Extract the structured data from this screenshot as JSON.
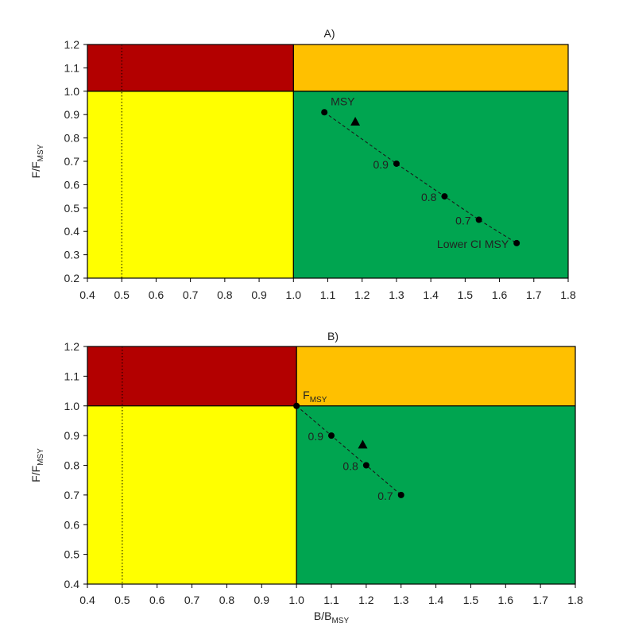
{
  "chart_data": [
    {
      "type": "scatter",
      "title": "A)",
      "xlabel": "",
      "ylabel": {
        "base": "F/F",
        "sub": "MSY"
      },
      "xlim": [
        0.4,
        1.8
      ],
      "ylim": [
        0.2,
        1.2
      ],
      "xticks": [
        "0.4",
        "0.5",
        "0.6",
        "0.7",
        "0.8",
        "0.9",
        "1.0",
        "1.1",
        "1.2",
        "1.3",
        "1.4",
        "1.5",
        "1.6",
        "1.7",
        "1.8"
      ],
      "yticks": [
        "0.2",
        "0.3",
        "0.4",
        "0.5",
        "0.6",
        "0.7",
        "0.8",
        "0.9",
        "1.0",
        "1.1",
        "1.2"
      ],
      "grid": false,
      "reference_line_x": 0.5,
      "zones": [
        {
          "x": [
            0.4,
            1.0
          ],
          "y": [
            1.0,
            1.2
          ],
          "color": "#b30000"
        },
        {
          "x": [
            1.0,
            1.8
          ],
          "y": [
            1.0,
            1.2
          ],
          "color": "#ffc000"
        },
        {
          "x": [
            0.4,
            1.0
          ],
          "y": [
            0.2,
            1.0
          ],
          "color": "#ffff00"
        },
        {
          "x": [
            1.0,
            1.8
          ],
          "y": [
            0.2,
            1.0
          ],
          "color": "#00a550"
        }
      ],
      "points": [
        {
          "x": 1.09,
          "y": 0.91,
          "label": "MSY",
          "label_side": "above-right"
        },
        {
          "x": 1.3,
          "y": 0.69,
          "label": "0.9",
          "label_side": "left"
        },
        {
          "x": 1.44,
          "y": 0.55,
          "label": "0.8",
          "label_side": "left"
        },
        {
          "x": 1.54,
          "y": 0.45,
          "label": "0.7",
          "label_side": "left"
        },
        {
          "x": 1.65,
          "y": 0.35,
          "label": "Lower CI MSY",
          "label_side": "left"
        }
      ],
      "marker": {
        "x": 1.18,
        "y": 0.87,
        "shape": "triangle"
      }
    },
    {
      "type": "scatter",
      "title": "B)",
      "xlabel": {
        "base": "B/B",
        "sub": "MSY"
      },
      "ylabel": {
        "base": "F/F",
        "sub": "MSY"
      },
      "xlim": [
        0.4,
        1.8
      ],
      "ylim": [
        0.4,
        1.2
      ],
      "xticks": [
        "0.4",
        "0.5",
        "0.6",
        "0.7",
        "0.8",
        "0.9",
        "1.0",
        "1.1",
        "1.2",
        "1.3",
        "1.4",
        "1.5",
        "1.6",
        "1.7",
        "1.8"
      ],
      "yticks": [
        "0.4",
        "0.5",
        "0.6",
        "0.7",
        "0.8",
        "0.9",
        "1.0",
        "1.1",
        "1.2"
      ],
      "grid": false,
      "reference_line_x": 0.5,
      "zones": [
        {
          "x": [
            0.4,
            1.0
          ],
          "y": [
            1.0,
            1.2
          ],
          "color": "#b30000"
        },
        {
          "x": [
            1.0,
            1.8
          ],
          "y": [
            1.0,
            1.2
          ],
          "color": "#ffc000"
        },
        {
          "x": [
            0.4,
            1.0
          ],
          "y": [
            0.4,
            1.0
          ],
          "color": "#ffff00"
        },
        {
          "x": [
            1.0,
            1.8
          ],
          "y": [
            0.4,
            1.0
          ],
          "color": "#00a550"
        }
      ],
      "points": [
        {
          "x": 1.0,
          "y": 1.0,
          "label": {
            "base": "F",
            "sub": "MSY"
          },
          "label_side": "above-right"
        },
        {
          "x": 1.1,
          "y": 0.9,
          "label": "0.9",
          "label_side": "left"
        },
        {
          "x": 1.2,
          "y": 0.8,
          "label": "0.8",
          "label_side": "left"
        },
        {
          "x": 1.3,
          "y": 0.7,
          "label": "0.7",
          "label_side": "left"
        }
      ],
      "marker": {
        "x": 1.19,
        "y": 0.87,
        "shape": "triangle"
      }
    }
  ]
}
